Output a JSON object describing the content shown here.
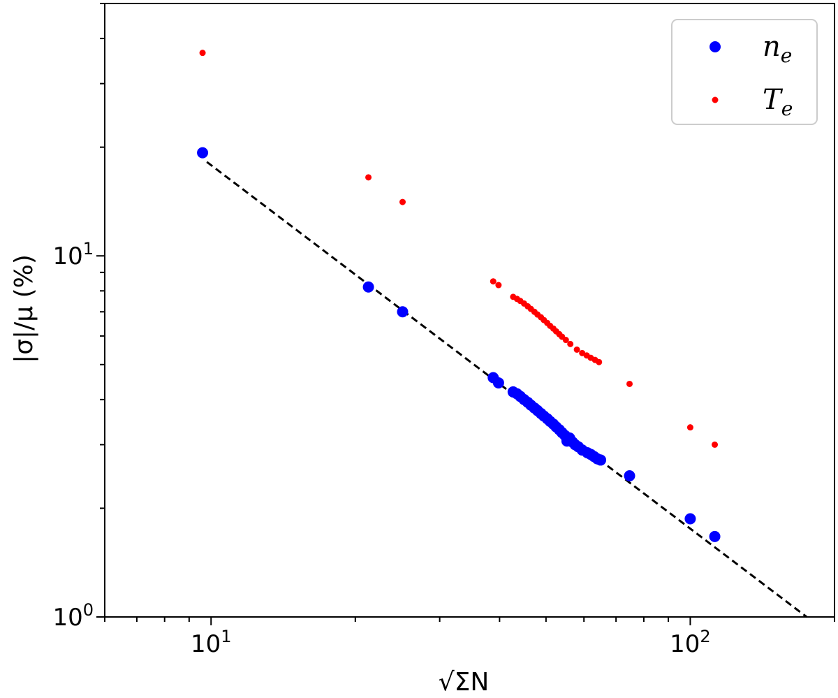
{
  "chart_data": {
    "type": "scatter",
    "xlabel": "√ΣN",
    "ylabel": "|σ|/μ (%)",
    "x_scale": "log",
    "y_scale": "log",
    "xlim": [
      6.0,
      200
    ],
    "ylim": [
      1.0,
      50
    ],
    "x_ticks": [
      {
        "value": 10,
        "base": "10",
        "exp": "1"
      },
      {
        "value": 100,
        "base": "10",
        "exp": "2"
      }
    ],
    "y_ticks": [
      {
        "value": 1,
        "base": "10",
        "exp": "0"
      },
      {
        "value": 10,
        "base": "10",
        "exp": "1"
      }
    ],
    "grid": false,
    "legend": {
      "position": "top-right"
    },
    "series": [
      {
        "name": "n",
        "name_sub": "e",
        "color": "#0000ff",
        "marker": "large-circle",
        "points": [
          [
            9.6,
            19.3
          ],
          [
            21.3,
            8.2
          ],
          [
            25.1,
            7.0
          ],
          [
            38.8,
            4.6
          ],
          [
            39.8,
            4.45
          ],
          [
            42.7,
            4.2
          ],
          [
            43.5,
            4.15
          ],
          [
            44.2,
            4.08
          ],
          [
            45.0,
            4.0
          ],
          [
            45.8,
            3.93
          ],
          [
            46.5,
            3.86
          ],
          [
            47.3,
            3.79
          ],
          [
            48.0,
            3.73
          ],
          [
            48.8,
            3.66
          ],
          [
            49.5,
            3.6
          ],
          [
            50.3,
            3.54
          ],
          [
            51.0,
            3.48
          ],
          [
            51.8,
            3.42
          ],
          [
            52.5,
            3.36
          ],
          [
            53.3,
            3.3
          ],
          [
            54.0,
            3.24
          ],
          [
            54.8,
            3.18
          ],
          [
            55.3,
            3.07
          ],
          [
            56.0,
            3.13
          ],
          [
            56.8,
            3.05
          ],
          [
            57.5,
            3.0
          ],
          [
            58.4,
            2.96
          ],
          [
            59.5,
            2.9
          ],
          [
            61.0,
            2.85
          ],
          [
            62.0,
            2.82
          ],
          [
            63.0,
            2.78
          ],
          [
            64.0,
            2.74
          ],
          [
            65.0,
            2.72
          ],
          [
            74.7,
            2.46
          ],
          [
            100.0,
            1.87
          ],
          [
            112.5,
            1.67
          ]
        ]
      },
      {
        "name": "T",
        "name_sub": "e",
        "color": "#ff0000",
        "marker": "small-circle",
        "points": [
          [
            9.6,
            36.5
          ],
          [
            21.3,
            16.5
          ],
          [
            25.1,
            14.1
          ],
          [
            38.8,
            8.5
          ],
          [
            39.8,
            8.3
          ],
          [
            42.7,
            7.7
          ],
          [
            43.5,
            7.6
          ],
          [
            44.2,
            7.5
          ],
          [
            45.0,
            7.38
          ],
          [
            45.8,
            7.25
          ],
          [
            46.5,
            7.13
          ],
          [
            47.3,
            7.0
          ],
          [
            48.0,
            6.88
          ],
          [
            48.8,
            6.76
          ],
          [
            49.5,
            6.64
          ],
          [
            50.3,
            6.52
          ],
          [
            51.0,
            6.4
          ],
          [
            51.8,
            6.29
          ],
          [
            52.5,
            6.18
          ],
          [
            53.3,
            6.07
          ],
          [
            54.0,
            5.97
          ],
          [
            55.0,
            5.85
          ],
          [
            56.2,
            5.7
          ],
          [
            58.0,
            5.5
          ],
          [
            59.5,
            5.38
          ],
          [
            60.8,
            5.3
          ],
          [
            62.0,
            5.22
          ],
          [
            63.3,
            5.15
          ],
          [
            64.5,
            5.08
          ],
          [
            74.7,
            4.42
          ],
          [
            100.0,
            3.35
          ],
          [
            112.5,
            3.0
          ]
        ]
      }
    ],
    "reference_line": {
      "style": "dashed",
      "color": "#000000",
      "points": [
        [
          9.8,
          18.2
        ],
        [
          175,
          1.0
        ]
      ]
    }
  }
}
